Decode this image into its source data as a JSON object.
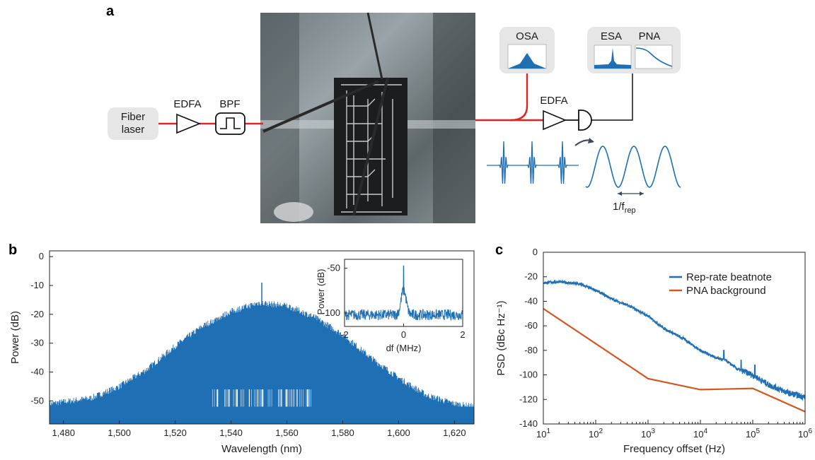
{
  "panel_labels": {
    "a": "a",
    "b": "b",
    "c": "c"
  },
  "setup": {
    "laser_label_line1": "Fiber",
    "laser_label_line2": "laser",
    "edfa1_label": "EDFA",
    "bpf_label": "BPF",
    "edfa2_label": "EDFA",
    "osa_label": "OSA",
    "esa_label": "ESA",
    "pna_label": "PNA",
    "period_label_main": "1/f",
    "period_label_sub": "rep"
  },
  "colors": {
    "spectrum_blue": "#1f6fb4",
    "pna_orange": "#d4571e",
    "fiber_red": "#e02424",
    "box_gray": "#e6e6e6"
  },
  "chart_data": [
    {
      "type": "line",
      "panel": "b",
      "xlabel": "Wavelength (nm)",
      "ylabel": "Power (dB)",
      "xlim": [
        1475,
        1627
      ],
      "ylim": [
        -58,
        2
      ],
      "xticks": [
        1480,
        1500,
        1520,
        1540,
        1560,
        1580,
        1600,
        1620
      ],
      "xtick_labels": [
        "1,480",
        "1,500",
        "1,520",
        "1,540",
        "1,560",
        "1,580",
        "1,600",
        "1,620"
      ],
      "yticks": [
        0,
        -10,
        -20,
        -30,
        -40,
        -50
      ],
      "ytick_labels": [
        "0",
        "-10",
        "-20",
        "-30",
        "-40",
        "-50"
      ],
      "comb_envelope": {
        "x": [
          1475,
          1490,
          1500,
          1510,
          1520,
          1530,
          1540,
          1550,
          1560,
          1570,
          1580,
          1590,
          1600,
          1610,
          1620,
          1627
        ],
        "y": [
          -51,
          -49,
          -45,
          -39,
          -31,
          -24,
          -19,
          -16,
          -17,
          -21,
          -27,
          -35,
          -42,
          -48,
          -51,
          -52
        ]
      },
      "noise_floor": -52,
      "peak": {
        "x": 1551,
        "y": -9
      },
      "inset": {
        "xlabel": "df (MHz)",
        "ylabel": "Power (dB)",
        "xlim": [
          -2,
          2
        ],
        "ylim": [
          -115,
          -40
        ],
        "xticks": [
          -2,
          0,
          2
        ],
        "xtick_labels": [
          "-2",
          "0",
          "2"
        ],
        "yticks": [
          -50,
          -100
        ],
        "ytick_labels": [
          "-50",
          "-100"
        ],
        "noise_floor": -102,
        "peak": {
          "x": 0,
          "y": -47
        }
      }
    },
    {
      "type": "line",
      "panel": "c",
      "xlabel": "Frequency offset (Hz)",
      "ylabel": "PSD (dBc Hz⁻¹)",
      "xscale": "log",
      "xlim": [
        10,
        1000000
      ],
      "ylim": [
        -140,
        0
      ],
      "xticks": [
        10,
        100,
        1000,
        10000,
        100000,
        1000000
      ],
      "xtick_base": [
        "10",
        "10",
        "10",
        "10",
        "10",
        "10"
      ],
      "xtick_exp": [
        "1",
        "2",
        "3",
        "4",
        "5",
        "6"
      ],
      "yticks": [
        0,
        -20,
        -40,
        -60,
        -80,
        -100,
        -120,
        -140
      ],
      "ytick_labels": [
        "0",
        "-20",
        "-40",
        "-60",
        "-80",
        "-100",
        "-120",
        "-140"
      ],
      "legend_position": "top-right",
      "series": [
        {
          "name": "Rep-rate beatnote",
          "x": [
            10,
            20,
            50,
            100,
            200,
            500,
            1000,
            2000,
            5000,
            10000,
            20000,
            30000,
            50000,
            100000,
            200000,
            500000,
            1000000
          ],
          "y": [
            -25,
            -24,
            -26,
            -31,
            -38,
            -45,
            -52,
            -62,
            -71,
            -80,
            -86,
            -88,
            -95,
            -100,
            -108,
            -115,
            -118
          ]
        },
        {
          "name": "PNA background",
          "x": [
            10,
            1000,
            10000,
            100000,
            1000000
          ],
          "y": [
            -46,
            -103,
            -112,
            -111,
            -130
          ]
        }
      ]
    }
  ]
}
